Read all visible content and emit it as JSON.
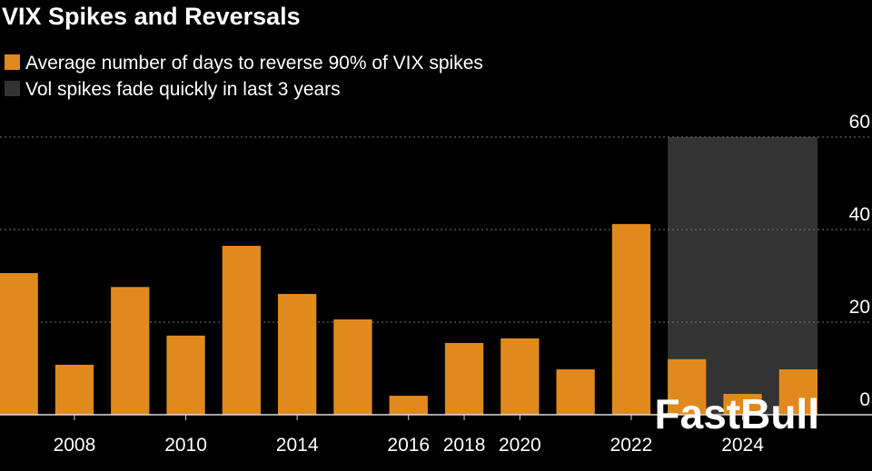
{
  "chart_data": {
    "type": "bar",
    "title": "VIX Spikes and Reversals",
    "series": [
      {
        "name": "Average number of days to reverse 90% of VIX spikes",
        "color": "#e08a1e",
        "values": [
          30.6,
          10.8,
          27.6,
          17.1,
          36.5,
          26.1,
          20.6,
          4.1,
          15.5,
          16.5,
          9.8,
          41.2,
          12,
          4.5,
          9.8
        ]
      }
    ],
    "categories": [
      null,
      "2008",
      null,
      "2010",
      null,
      "2014",
      null,
      "2016",
      "2018",
      "2020",
      null,
      "2022",
      null,
      "2024",
      null
    ],
    "highlight": {
      "name": "Vol spikes fade quickly in last 3 years",
      "color": "#333333",
      "from": 12,
      "to": 14
    },
    "ylim": [
      0,
      60
    ],
    "yticks": [
      0,
      20,
      40,
      60
    ],
    "grid": true,
    "watermark": "FastBull"
  }
}
